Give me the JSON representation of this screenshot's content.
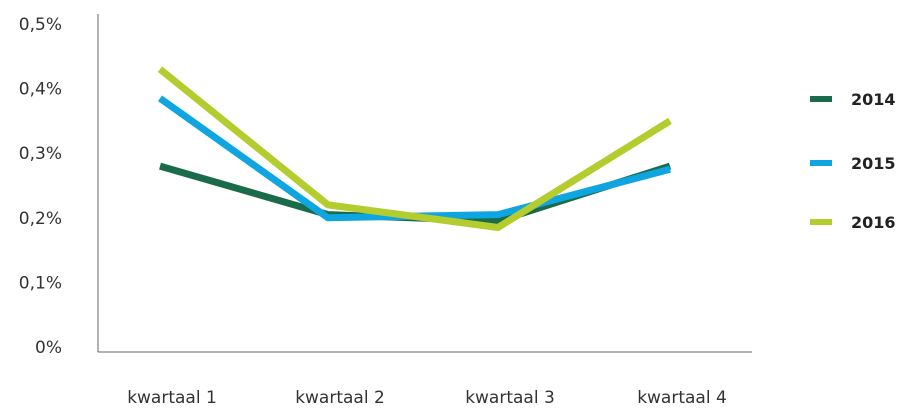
{
  "chart_data": {
    "type": "line",
    "categories": [
      "kwartaal 1",
      "kwartaal 2",
      "kwartaal 3",
      "kwartaal 4"
    ],
    "series": [
      {
        "name": "2014",
        "color": "#1a6b4a",
        "values": [
          0.28,
          0.205,
          0.195,
          0.28
        ]
      },
      {
        "name": "2015",
        "color": "#0ea5e0",
        "values": [
          0.385,
          0.2,
          0.205,
          0.275
        ]
      },
      {
        "name": "2016",
        "color": "#b5cc2e",
        "values": [
          0.43,
          0.22,
          0.185,
          0.35
        ]
      }
    ],
    "yticks": [
      "0%",
      "0,1%",
      "0,2%",
      "0,3%",
      "0,4%",
      "0,5%"
    ],
    "ylim": [
      0,
      0.5
    ],
    "title": "",
    "xlabel": "",
    "ylabel": "",
    "grid": false,
    "legend_position": "right"
  }
}
